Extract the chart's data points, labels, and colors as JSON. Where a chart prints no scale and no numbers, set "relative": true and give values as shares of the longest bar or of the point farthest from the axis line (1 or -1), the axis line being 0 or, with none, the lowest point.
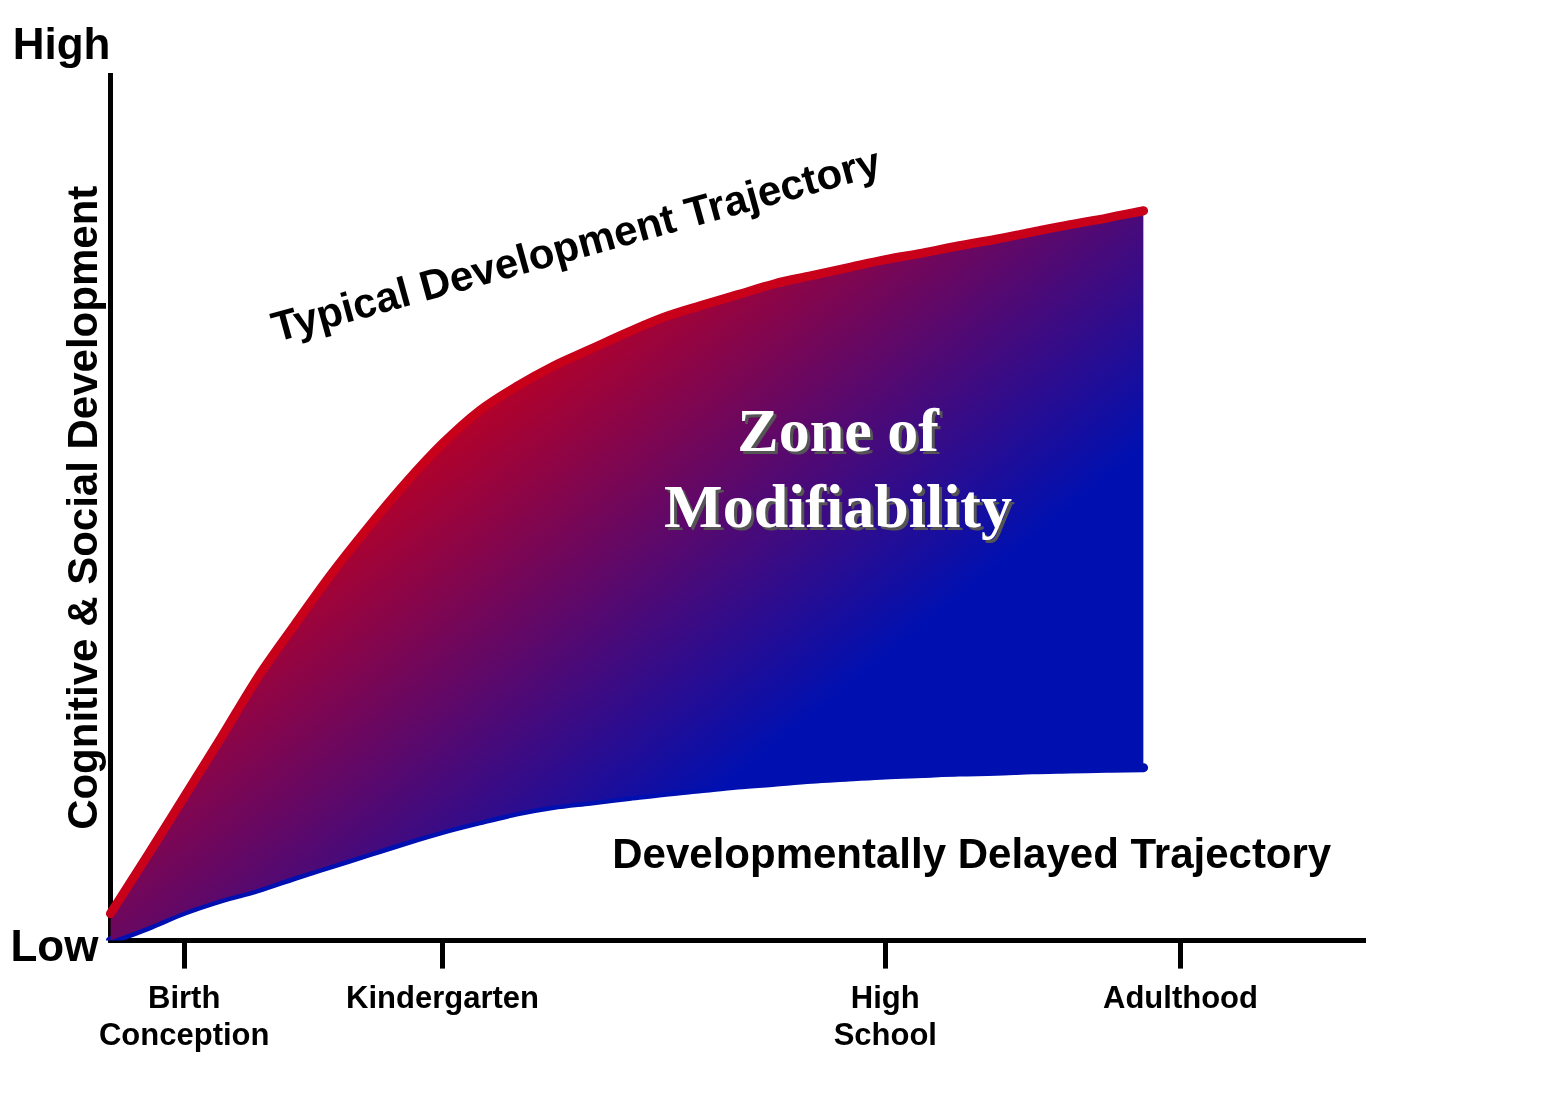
{
  "chart_data": {
    "type": "line",
    "relative": true,
    "ylabel": "Cognitive & Social Development",
    "categories": [
      null,
      null,
      "Birth Conception",
      null,
      null,
      null,
      null,
      null,
      null,
      "Kindergarten",
      null,
      null,
      null,
      null,
      null,
      null,
      null,
      null,
      null,
      null,
      null,
      "High School",
      null,
      null,
      null,
      null,
      null,
      null,
      null,
      "Adulthood",
      null,
      null,
      null,
      null,
      null
    ],
    "series": [
      {
        "name": "Typical Development Trajectory",
        "color": "#c8001a",
        "values": [
          0.037,
          0.116,
          0.197,
          0.278,
          0.361,
          0.433,
          0.503,
          0.567,
          0.627,
          0.681,
          0.726,
          0.759,
          0.787,
          0.81,
          0.833,
          0.854,
          0.87,
          0.885,
          0.9,
          0.911,
          0.922,
          0.933,
          0.942,
          0.952,
          0.961,
          0.971,
          0.981,
          0.99,
          1,
          null,
          null,
          null,
          null,
          null,
          null
        ]
      },
      {
        "name": "Developmentally Delayed Trajectory",
        "color": "#0010b0",
        "values": [
          0,
          0.019,
          0.04,
          0.057,
          0.071,
          0.088,
          0.104,
          0.12,
          0.136,
          0.151,
          0.164,
          0.176,
          0.185,
          0.191,
          0.197,
          0.203,
          0.208,
          0.213,
          0.217,
          0.221,
          0.224,
          0.227,
          0.229,
          0.231,
          0.232,
          0.234,
          0.235,
          0.236,
          0.237,
          null,
          null,
          null,
          null,
          null,
          null
        ]
      }
    ],
    "annotations": [
      "High",
      "Low",
      "Zone of Modifiability"
    ],
    "grid": false,
    "legend": false
  }
}
